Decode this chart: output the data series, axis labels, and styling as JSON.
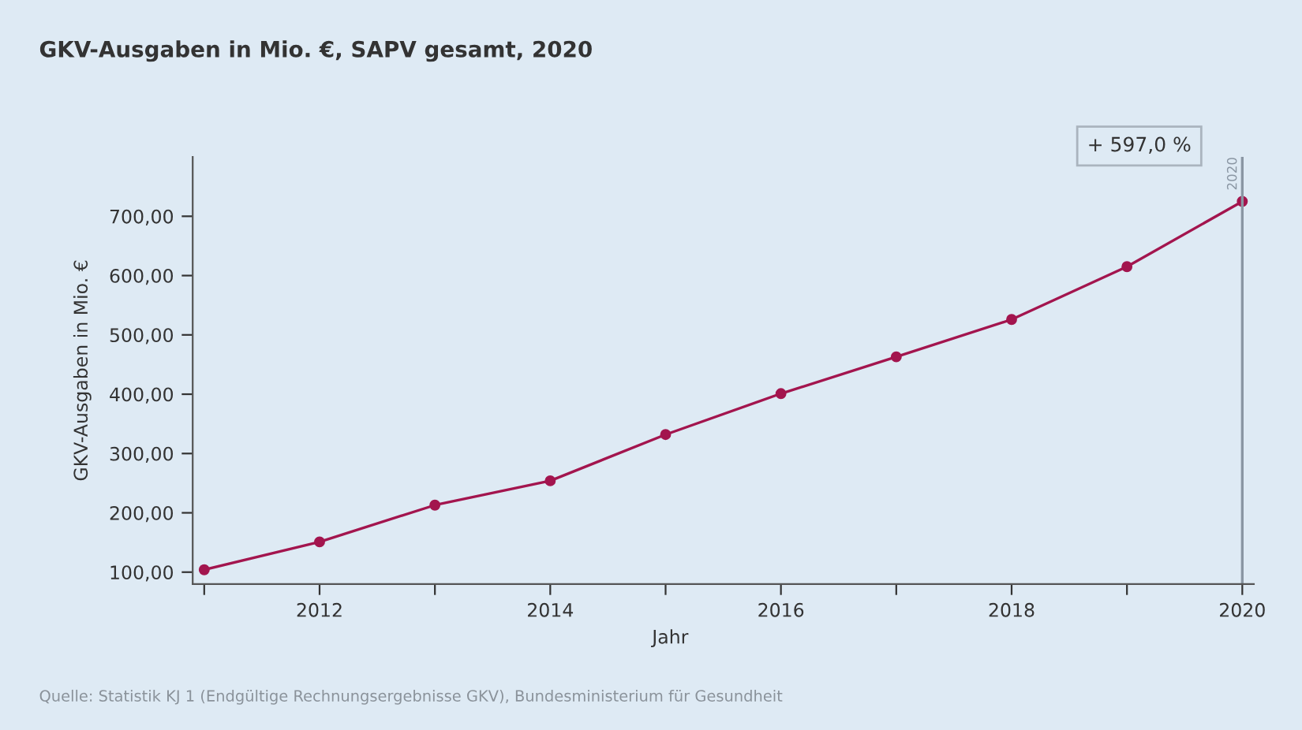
{
  "chart_data": {
    "type": "line",
    "title": "GKV-Ausgaben in Mio. €, SAPV gesamt, 2020",
    "xlabel": "Jahr",
    "ylabel": "GKV-Ausgaben in Mio. €",
    "x": [
      2011,
      2012,
      2013,
      2014,
      2015,
      2016,
      2017,
      2018,
      2019,
      2020
    ],
    "series": [
      {
        "color": "#a3154e",
        "values": [
          104,
          151,
          213,
          254,
          332,
          401,
          463,
          526,
          615,
          725
        ]
      }
    ],
    "marker": "circle",
    "line_style": "solid",
    "grid": false,
    "xlim": [
      2010.9,
      2020.1
    ],
    "ylim": [
      80,
      800
    ],
    "xticks": [
      {
        "value": 2011,
        "label": null
      },
      2012,
      {
        "value": 2013,
        "label": null
      },
      2014,
      {
        "value": 2015,
        "label": null
      },
      2016,
      {
        "value": 2017,
        "label": null
      },
      2018,
      {
        "value": 2019,
        "label": null
      },
      2020
    ],
    "yticks": [
      {
        "value": 100,
        "label": "100,00"
      },
      {
        "value": 200,
        "label": "200,00"
      },
      {
        "value": 300,
        "label": "300,00"
      },
      {
        "value": 400,
        "label": "400,00"
      },
      {
        "value": 500,
        "label": "500,00"
      },
      {
        "value": 600,
        "label": "600,00"
      },
      {
        "value": 700,
        "label": "700,00"
      }
    ],
    "ref_lines": [
      {
        "axis": "x",
        "value": 2020,
        "label": "2020",
        "color": "#8a96a3"
      }
    ],
    "annotations": [
      "+ 597,0 %",
      "Quelle: Statistik KJ 1 (Endgültige Rechnungsergebnisse GKV), Bundesministerium für Gesundheit"
    ]
  }
}
